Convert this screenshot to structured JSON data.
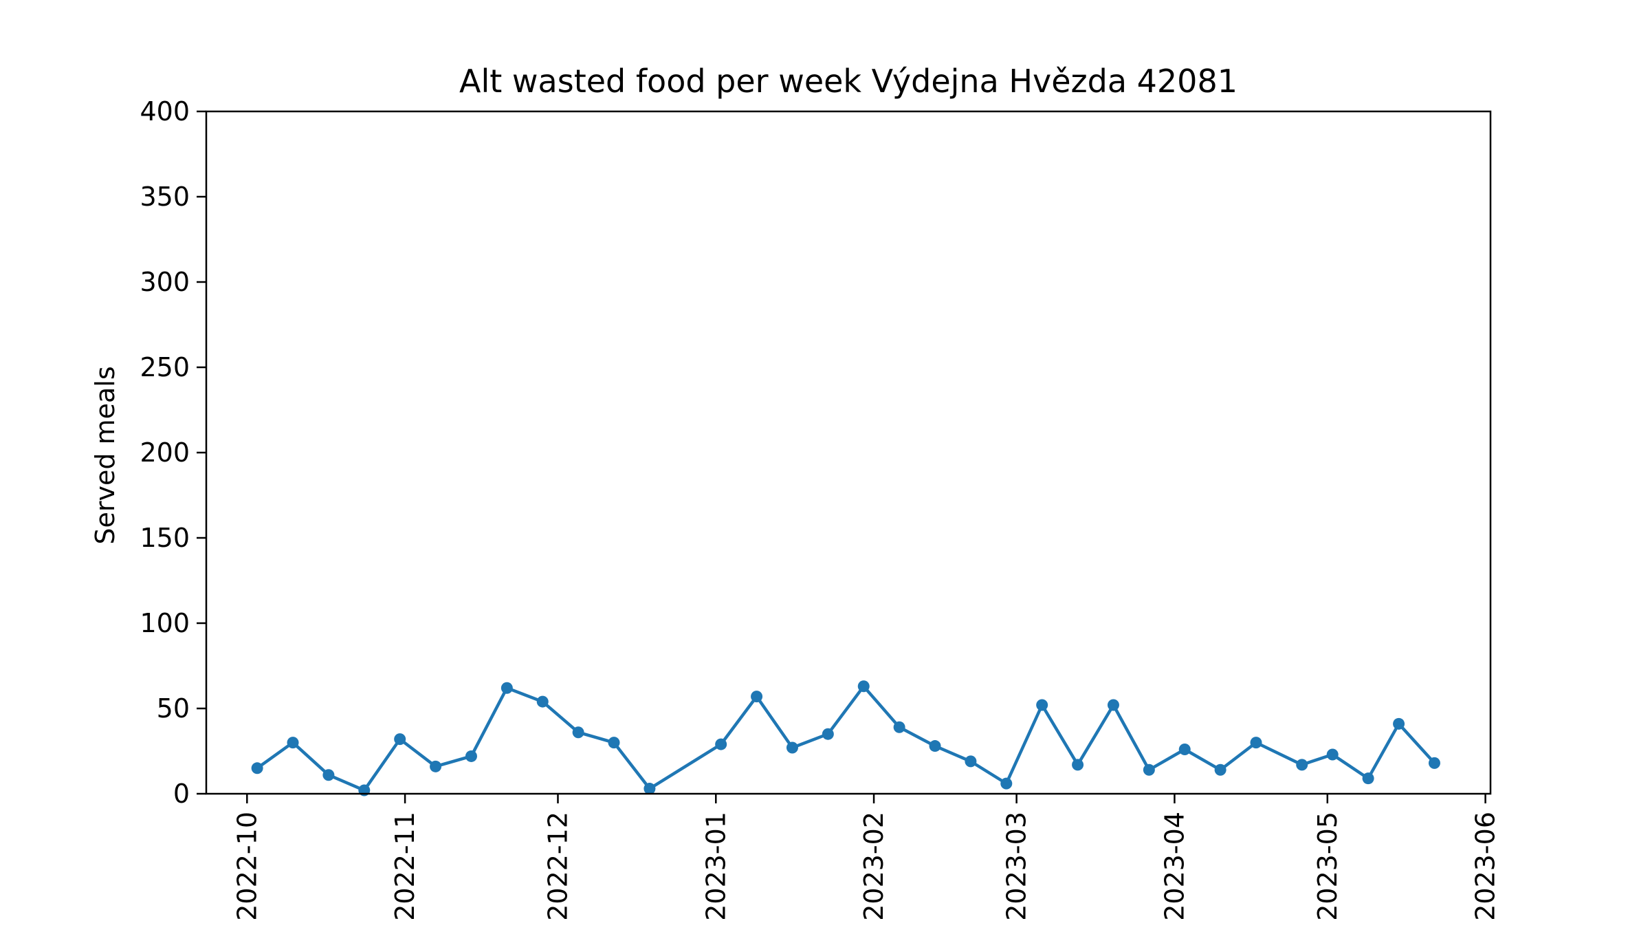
{
  "chart_data": {
    "type": "line",
    "title": "Alt wasted food per week Výdejna Hvězda 42081",
    "xlabel": "",
    "ylabel": "Served meals",
    "xlim": [
      "2022-09-23",
      "2023-06-02"
    ],
    "ylim": [
      0,
      400
    ],
    "yticks": [
      0,
      50,
      100,
      150,
      200,
      250,
      300,
      350,
      400
    ],
    "xticks": [
      "2022-10",
      "2022-11",
      "2022-12",
      "2023-01",
      "2023-02",
      "2023-03",
      "2023-04",
      "2023-05",
      "2023-06"
    ],
    "grid": false,
    "color": "#1f77b4",
    "marker": "circle",
    "series": [
      {
        "x": [
          "2022-10-03",
          "2022-10-10",
          "2022-10-17",
          "2022-10-24",
          "2022-10-31",
          "2022-11-07",
          "2022-11-14",
          "2022-11-21",
          "2022-11-28",
          "2022-12-05",
          "2022-12-12",
          "2022-12-19",
          "2023-01-02",
          "2023-01-09",
          "2023-01-16",
          "2023-01-23",
          "2023-01-30",
          "2023-02-06",
          "2023-02-13",
          "2023-02-20",
          "2023-02-27",
          "2023-03-06",
          "2023-03-13",
          "2023-03-20",
          "2023-03-27",
          "2023-04-03",
          "2023-04-10",
          "2023-04-17",
          "2023-04-26",
          "2023-05-02",
          "2023-05-09",
          "2023-05-15",
          "2023-05-22"
        ],
        "y": [
          15,
          30,
          11,
          2,
          32,
          16,
          22,
          62,
          54,
          36,
          30,
          3,
          29,
          57,
          27,
          35,
          63,
          39,
          28,
          19,
          6,
          52,
          17,
          52,
          14,
          26,
          14,
          30,
          17,
          23,
          9,
          41,
          18
        ]
      }
    ]
  }
}
